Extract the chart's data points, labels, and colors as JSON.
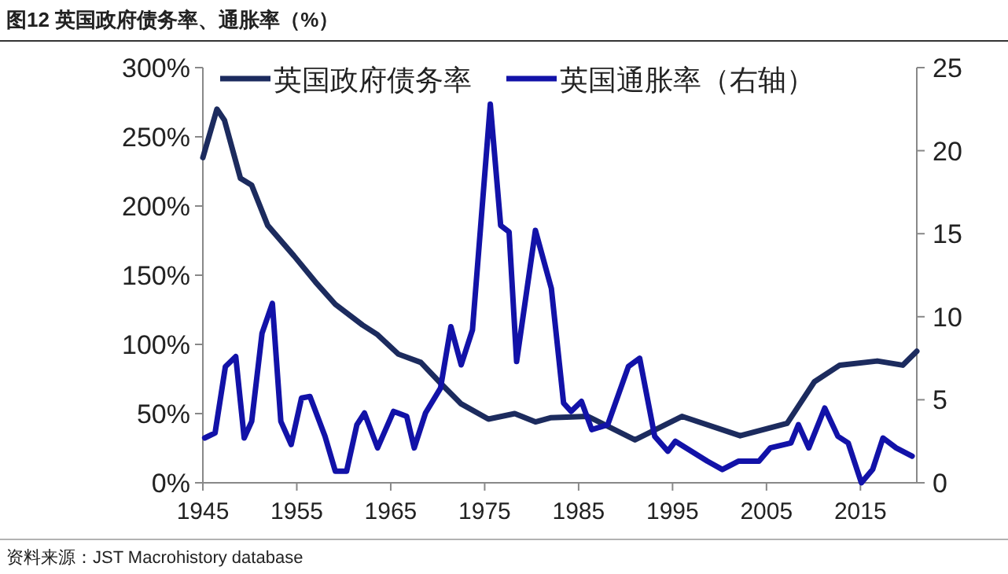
{
  "chart_data": {
    "type": "line",
    "title": "图12 英国政府债务率、通胀率（%）",
    "annotations": [
      "资料来源：JST Macrohistory database"
    ],
    "xlim": [
      1945,
      2021
    ],
    "xticks": [
      1945,
      1955,
      1965,
      1975,
      1985,
      1995,
      2005,
      2015
    ],
    "ylim": [
      0,
      300
    ],
    "yticks": [
      {
        "value": 0,
        "label": "0%"
      },
      {
        "value": 50,
        "label": "50%"
      },
      {
        "value": 100,
        "label": "100%"
      },
      {
        "value": 150,
        "label": "150%"
      },
      {
        "value": 200,
        "label": "200%"
      },
      {
        "value": 250,
        "label": "250%"
      },
      {
        "value": 300,
        "label": "300%"
      }
    ],
    "y2lim": [
      0,
      25
    ],
    "y2ticks": [
      0,
      5,
      10,
      15,
      20,
      25
    ],
    "legend": "top",
    "grid": false,
    "marker": "none",
    "line_style": "solid",
    "series": [
      {
        "name": "英国政府债务率",
        "color": "#1c2b5e",
        "x": [
          1945,
          1946.5,
          1947.3,
          1949,
          1950.2,
          1951.9,
          1954.7,
          1957,
          1959.1,
          1962,
          1963.6,
          1965.8,
          1968.2,
          1970.3,
          1972.5,
          1975.4,
          1978.2,
          1980.4,
          1982,
          1986,
          1991,
          1996,
          2002.2,
          2007.2,
          2010.1,
          2012.8,
          2016.8,
          2019.5,
          2021
        ],
        "values": [
          235,
          270,
          262,
          220,
          215,
          186,
          164,
          145,
          129,
          114,
          107,
          93,
          87,
          72,
          57,
          46,
          50,
          44,
          47,
          48,
          31,
          48,
          34,
          43,
          73,
          85,
          88,
          85,
          95
        ]
      },
      {
        "name": "英国通胀率（右轴）",
        "color": "#1212a8",
        "axis": "y2",
        "x": [
          1945.2,
          1946.3,
          1947.4,
          1948.5,
          1949.4,
          1950.2,
          1951.3,
          1952.4,
          1953.3,
          1954.4,
          1955.5,
          1956.4,
          1958,
          1959.1,
          1960.3,
          1961.4,
          1962.2,
          1963.6,
          1965.3,
          1966.7,
          1967.5,
          1968.7,
          1970.3,
          1971.4,
          1972.5,
          1973.7,
          1975.6,
          1976.7,
          1977.6,
          1978.4,
          1980.4,
          1982.1,
          1983.4,
          1984.2,
          1985.3,
          1986.4,
          1988.1,
          1990.3,
          1991.5,
          1993.1,
          1994.5,
          1995.3,
          1998.7,
          2000.3,
          2002,
          2004.2,
          2005.4,
          2007.6,
          2008.4,
          2009.5,
          2011.2,
          2012.6,
          2013.7,
          2015.1,
          2016.3,
          2017.4,
          2018.8,
          2020.5
        ],
        "values": [
          2.7,
          3.0,
          7.0,
          7.6,
          2.7,
          3.7,
          9.0,
          10.8,
          3.7,
          2.3,
          5.1,
          5.2,
          2.8,
          0.7,
          0.7,
          3.5,
          4.2,
          2.1,
          4.3,
          4.0,
          2.1,
          4.2,
          5.7,
          9.4,
          7.1,
          9.2,
          22.8,
          15.5,
          15.1,
          7.3,
          15.2,
          11.7,
          4.8,
          4.3,
          4.9,
          3.2,
          3.5,
          7.0,
          7.5,
          2.8,
          1.9,
          2.5,
          1.3,
          0.8,
          1.3,
          1.3,
          2.1,
          2.4,
          3.5,
          2.1,
          4.5,
          2.8,
          2.4,
          0.0,
          0.8,
          2.7,
          2.1,
          1.6
        ]
      }
    ]
  }
}
